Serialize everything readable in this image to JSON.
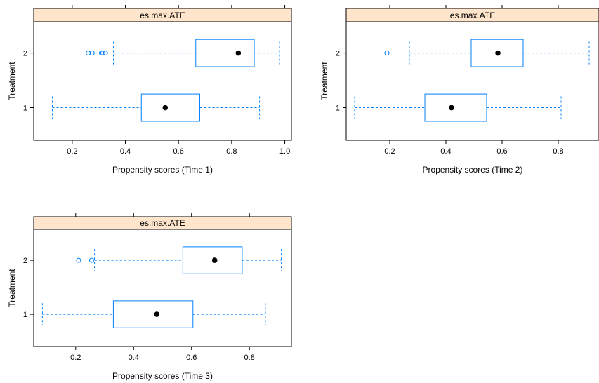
{
  "colors": {
    "box": "#0080ff",
    "strip_fill": "#ffe5cc",
    "frame": "#000000",
    "median_dot": "#000000"
  },
  "chart_data": [
    {
      "type": "boxplot",
      "orientation": "horizontal",
      "strip_label": "es.max.ATE",
      "xlabel": "Propensity scores (Time 1)",
      "ylabel": "Treatment",
      "xlim": [
        0.055,
        1.025
      ],
      "x_ticks": [
        0.2,
        0.4,
        0.6,
        0.8,
        1.0
      ],
      "x_tick_labels": [
        "0.2",
        "0.4",
        "0.6",
        "0.8",
        "1.0"
      ],
      "categories": [
        "1",
        "2"
      ],
      "boxes": [
        {
          "group": "1",
          "whisker_low": 0.125,
          "q1": 0.46,
          "median": 0.55,
          "q3": 0.68,
          "whisker_high": 0.905,
          "outliers": []
        },
        {
          "group": "2",
          "whisker_low": 0.355,
          "q1": 0.665,
          "median": 0.825,
          "q3": 0.885,
          "whisker_high": 0.98,
          "outliers": [
            0.26,
            0.275,
            0.31,
            0.315,
            0.325
          ]
        }
      ]
    },
    {
      "type": "boxplot",
      "orientation": "horizontal",
      "strip_label": "es.max.ATE",
      "xlabel": "Propensity scores (Time 2)",
      "ylabel": "Treatment",
      "xlim": [
        0.045,
        0.945
      ],
      "x_ticks": [
        0.2,
        0.4,
        0.6,
        0.8
      ],
      "x_tick_labels": [
        "0.2",
        "0.4",
        "0.6",
        "0.8"
      ],
      "categories": [
        "1",
        "2"
      ],
      "boxes": [
        {
          "group": "1",
          "whisker_low": 0.075,
          "q1": 0.325,
          "median": 0.42,
          "q3": 0.545,
          "whisker_high": 0.81,
          "outliers": []
        },
        {
          "group": "2",
          "whisker_low": 0.27,
          "q1": 0.49,
          "median": 0.585,
          "q3": 0.675,
          "whisker_high": 0.91,
          "outliers": [
            0.19
          ]
        }
      ]
    },
    {
      "type": "boxplot",
      "orientation": "horizontal",
      "strip_label": "es.max.ATE",
      "xlabel": "Propensity scores (Time 3)",
      "ylabel": "Treatment",
      "xlim": [
        0.055,
        0.945
      ],
      "x_ticks": [
        0.2,
        0.4,
        0.6,
        0.8
      ],
      "x_tick_labels": [
        "0.2",
        "0.4",
        "0.6",
        "0.8"
      ],
      "categories": [
        "1",
        "2"
      ],
      "boxes": [
        {
          "group": "1",
          "whisker_low": 0.085,
          "q1": 0.33,
          "median": 0.48,
          "q3": 0.605,
          "whisker_high": 0.855,
          "outliers": []
        },
        {
          "group": "2",
          "whisker_low": 0.265,
          "q1": 0.57,
          "median": 0.68,
          "q3": 0.775,
          "whisker_high": 0.91,
          "outliers": [
            0.21,
            0.255
          ]
        }
      ]
    }
  ]
}
